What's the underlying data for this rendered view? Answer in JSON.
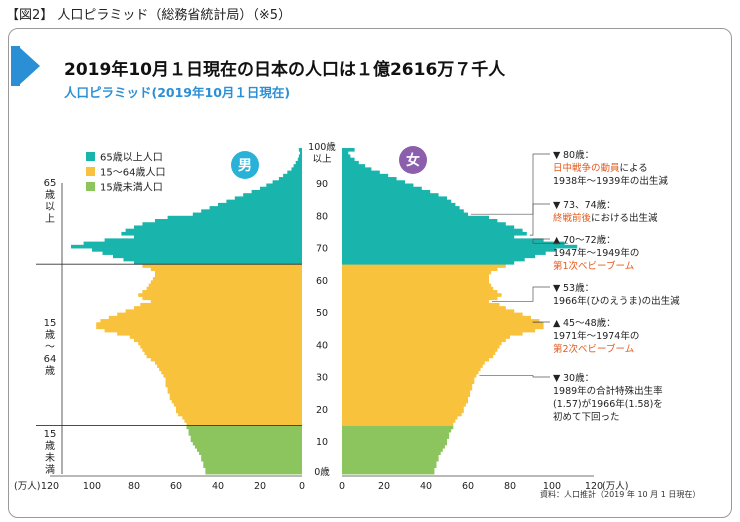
{
  "figure_title": "【図2】 人口ピラミッド（総務省統計局）（※5）",
  "header": {
    "title": "2019年10月１日現在の日本の人口は１億2616万７千人",
    "subtitle": "人口ピラミッド(2019年10月１日現在)"
  },
  "colors": {
    "elderly": "#19b5ad",
    "working": "#f8c23c",
    "young": "#8cc45e",
    "accent": "#2b8fd6",
    "male_badge": "#29b2d8",
    "female_badge": "#8b5fab",
    "annotation_red": "#e65a1c"
  },
  "legend": [
    {
      "label": "65歳以上人口",
      "color": "#19b5ad"
    },
    {
      "label": "15〜64歳人口",
      "color": "#f8c23c"
    },
    {
      "label": "15歳未満人口",
      "color": "#8cc45e"
    }
  ],
  "labels": {
    "male": "男",
    "female": "女",
    "unit_left": "(万人)",
    "unit_right": "(万人)",
    "age_top_1": "100歳",
    "age_top_2": "以上",
    "age_zero": "0歳",
    "group_65": [
      "65",
      "歳",
      "以",
      "上"
    ],
    "group_15_64": [
      "15",
      "歳",
      "〜",
      "64",
      "歳"
    ],
    "group_under15": [
      "15",
      "歳",
      "未",
      "満"
    ],
    "source": "資料：人口推計（2019 年 10 月 1 日現在）"
  },
  "annotations": [
    {
      "lines": [
        {
          "text": "▼80歳：",
          "red": false
        },
        {
          "text": "日中戦争の動員による",
          "red": "partial",
          "red_part": "日中戦争の動員",
          "rest": "による"
        },
        {
          "text": "1938年〜1939年の出生減",
          "red": false
        }
      ]
    },
    {
      "lines": [
        {
          "text": "▼73、74歳：",
          "red": false
        },
        {
          "text": "終戦前後における出生減",
          "red": "partial",
          "red_part": "終戦前後",
          "rest": "における出生減"
        }
      ]
    },
    {
      "lines": [
        {
          "text": "▲70〜72歳：",
          "red": false
        },
        {
          "text": "1947年〜1949年の",
          "red": false
        },
        {
          "text": "第1次ベビーブーム",
          "red": true
        }
      ]
    },
    {
      "lines": [
        {
          "text": "▼53歳：",
          "red": false
        },
        {
          "text": "1966年(ひのえうま)の出生減",
          "red": false
        }
      ]
    },
    {
      "lines": [
        {
          "text": "▲45〜48歳：",
          "red": false
        },
        {
          "text": "1971年〜1974年の",
          "red": false
        },
        {
          "text": "第2次ベビーブーム",
          "red": true
        }
      ]
    },
    {
      "lines": [
        {
          "text": "▼30歳：",
          "red": false
        },
        {
          "text": "1989年の合計特殊出生率",
          "red": false
        },
        {
          "text": "(1.57)が1966年(1.58)を",
          "red": false
        },
        {
          "text": "初めて下回った",
          "red": false
        }
      ]
    }
  ],
  "chart_data": {
    "type": "bar",
    "orientation": "horizontal-pyramid",
    "age_ticks": [
      0,
      10,
      20,
      30,
      40,
      50,
      60,
      70,
      80,
      90
    ],
    "x_ticks_left": [
      120,
      100,
      80,
      60,
      40,
      20,
      0
    ],
    "x_ticks_right": [
      0,
      20,
      40,
      60,
      80,
      100,
      120
    ],
    "xlim": [
      0,
      120
    ],
    "series": [
      {
        "name": "男",
        "values": [
          46,
          46,
          47,
          47,
          48,
          48,
          49,
          50,
          51,
          52,
          53,
          53,
          54,
          54,
          55,
          55,
          56,
          57,
          59,
          60,
          60,
          61,
          62,
          63,
          63,
          64,
          64,
          65,
          65,
          65,
          66,
          67,
          68,
          69,
          70,
          72,
          74,
          75,
          76,
          77,
          78,
          80,
          82,
          88,
          94,
          98,
          98,
          96,
          92,
          88,
          84,
          80,
          77,
          72,
          76,
          78,
          76,
          74,
          73,
          72,
          71,
          70,
          70,
          72,
          76,
          80,
          85,
          90,
          95,
          100,
          110,
          104,
          94,
          80,
          86,
          84,
          80,
          76,
          70,
          64,
          52,
          48,
          44,
          40,
          36,
          32,
          28,
          24,
          20,
          17,
          14,
          11,
          9,
          7,
          5,
          4,
          3,
          2,
          1.5,
          1,
          1.5
        ]
      },
      {
        "name": "女",
        "values": [
          44,
          44,
          45,
          45,
          46,
          46,
          47,
          48,
          49,
          50,
          50,
          51,
          51,
          52,
          53,
          53,
          54,
          55,
          57,
          58,
          58,
          59,
          60,
          60,
          61,
          61,
          62,
          62,
          63,
          63,
          64,
          65,
          66,
          67,
          68,
          70,
          72,
          73,
          74,
          75,
          76,
          78,
          80,
          86,
          92,
          96,
          96,
          94,
          90,
          86,
          82,
          78,
          75,
          70,
          74,
          76,
          74,
          72,
          71,
          70,
          70,
          70,
          71,
          74,
          78,
          82,
          87,
          92,
          97,
          102,
          112,
          106,
          96,
          82,
          88,
          86,
          82,
          78,
          74,
          70,
          60,
          58,
          56,
          54,
          52,
          50,
          46,
          42,
          38,
          34,
          30,
          26,
          22,
          18,
          14,
          11,
          8,
          6,
          4,
          3,
          6
        ]
      }
    ]
  }
}
